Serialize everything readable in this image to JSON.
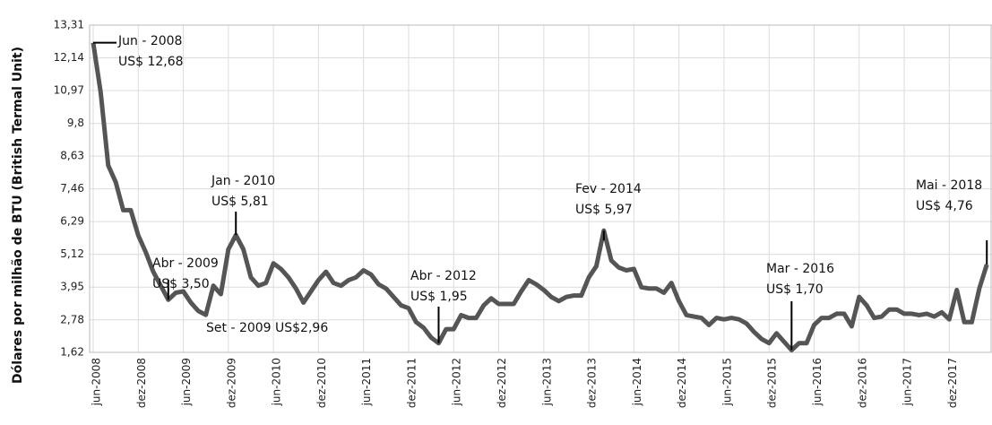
{
  "chart_data": {
    "type": "line",
    "y_label": "Dólares por milhão de BTU (British Termal Unit)",
    "categories": [
      "jun-2008",
      null,
      null,
      null,
      null,
      null,
      "dez-2008",
      null,
      null,
      null,
      null,
      null,
      "jun-2009",
      null,
      null,
      null,
      null,
      null,
      "dez-2009",
      null,
      null,
      null,
      null,
      null,
      "jun-2010",
      null,
      null,
      null,
      null,
      null,
      "dez-2010",
      null,
      null,
      null,
      null,
      null,
      "jun-2011",
      null,
      null,
      null,
      null,
      null,
      "dez-2011",
      null,
      null,
      null,
      null,
      null,
      "jun-2012",
      null,
      null,
      null,
      null,
      null,
      "dez-2012",
      null,
      null,
      null,
      null,
      null,
      "jun-2013",
      null,
      null,
      null,
      null,
      null,
      "dez-2013",
      null,
      null,
      null,
      null,
      null,
      "jun-2014",
      null,
      null,
      null,
      null,
      null,
      "dez-2014",
      null,
      null,
      null,
      null,
      null,
      "jun-2015",
      null,
      null,
      null,
      null,
      null,
      "dez-2015",
      null,
      null,
      null,
      null,
      null,
      "jun-2016",
      null,
      null,
      null,
      null,
      null,
      "dez-2016",
      null,
      null,
      null,
      null,
      null,
      "jun-2017",
      null,
      null,
      null,
      null,
      null,
      "dez-2017",
      null,
      null,
      null,
      null,
      null
    ],
    "series": [
      {
        "color": "#555555",
        "values": [
          12.68,
          10.9,
          8.3,
          7.7,
          6.7,
          6.7,
          5.8,
          5.2,
          4.5,
          4.0,
          3.5,
          3.75,
          3.8,
          3.4,
          3.1,
          2.96,
          4.0,
          3.7,
          5.3,
          5.81,
          5.3,
          4.3,
          4.0,
          4.1,
          4.8,
          4.6,
          4.3,
          3.9,
          3.4,
          3.8,
          4.2,
          4.5,
          4.1,
          4.0,
          4.2,
          4.3,
          4.55,
          4.4,
          4.05,
          3.9,
          3.6,
          3.3,
          3.2,
          2.7,
          2.5,
          2.15,
          1.95,
          2.45,
          2.45,
          2.95,
          2.85,
          2.85,
          3.3,
          3.55,
          3.35,
          3.35,
          3.35,
          3.8,
          4.2,
          4.05,
          3.85,
          3.6,
          3.45,
          3.6,
          3.65,
          3.65,
          4.3,
          4.7,
          5.97,
          4.9,
          4.65,
          4.55,
          4.6,
          3.95,
          3.9,
          3.9,
          3.75,
          4.1,
          3.45,
          2.95,
          2.9,
          2.85,
          2.6,
          2.85,
          2.8,
          2.85,
          2.8,
          2.65,
          2.35,
          2.1,
          1.95,
          2.3,
          2.0,
          1.7,
          1.95,
          1.95,
          2.6,
          2.85,
          2.85,
          3.0,
          3.0,
          2.55,
          3.6,
          3.3,
          2.85,
          2.9,
          3.15,
          3.15,
          3.0,
          3.0,
          2.95,
          3.0,
          2.9,
          3.05,
          2.8,
          3.85,
          2.7,
          2.7,
          3.9,
          4.76
        ]
      }
    ],
    "ylim": [
      1.62,
      13.31
    ],
    "yticks": [
      {
        "value": 1.62,
        "label": "1,62"
      },
      {
        "value": 2.78,
        "label": "2,78"
      },
      {
        "value": 3.95,
        "label": "3,95"
      },
      {
        "value": 5.12,
        "label": "5,12"
      },
      {
        "value": 6.29,
        "label": "6,29"
      },
      {
        "value": 7.46,
        "label": "7,46"
      },
      {
        "value": 8.63,
        "label": "8,63"
      },
      {
        "value": 9.8,
        "label": "9,8"
      },
      {
        "value": 10.97,
        "label": "10,97"
      },
      {
        "value": 12.14,
        "label": "12,14"
      },
      {
        "value": 13.31,
        "label": "13,31"
      }
    ],
    "grid": true,
    "annotations": [
      {
        "lines": [
          "Jun - 2008",
          "US$ 12,68"
        ]
      },
      {
        "lines": [
          "Abr - 2009",
          "US$ 3,50"
        ]
      },
      {
        "lines": [
          "Set - 2009 US$2,96"
        ]
      },
      {
        "lines": [
          "Jan - 2010",
          "US$ 5,81"
        ]
      },
      {
        "lines": [
          "Abr - 2012",
          "US$ 1,95"
        ]
      },
      {
        "lines": [
          "Fev - 2014",
          "US$ 5,97"
        ]
      },
      {
        "lines": [
          "Mar - 2016",
          "US$ 1,70"
        ]
      },
      {
        "lines": [
          "Mai - 2018",
          "US$ 4,76"
        ]
      }
    ]
  }
}
